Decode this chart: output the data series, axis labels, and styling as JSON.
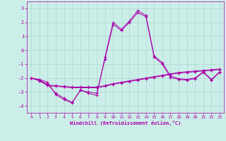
{
  "xlabel": "Windchill (Refroidissement éolien,°C)",
  "bg_color": "#cceee8",
  "grid_color": "#aad8d2",
  "line_color": "#aa00aa",
  "xlim": [
    -0.5,
    23.5
  ],
  "ylim": [
    -4.5,
    3.5
  ],
  "xticks": [
    0,
    1,
    2,
    3,
    4,
    5,
    6,
    7,
    8,
    9,
    10,
    11,
    12,
    13,
    14,
    15,
    16,
    17,
    18,
    19,
    20,
    21,
    22,
    23
  ],
  "yticks": [
    -4,
    -3,
    -2,
    -1,
    0,
    1,
    2,
    3
  ],
  "series": [
    {
      "x": [
        0,
        1,
        2,
        3,
        4,
        5,
        6,
        7,
        8,
        9,
        10,
        11,
        12,
        13,
        14,
        15,
        16,
        17,
        18,
        19,
        20,
        21,
        22,
        23
      ],
      "y": [
        -2.0,
        -2.1,
        -2.3,
        -3.2,
        -3.55,
        -3.8,
        -2.85,
        -3.1,
        -3.25,
        -0.5,
        2.0,
        1.5,
        2.1,
        2.85,
        2.5,
        -0.4,
        -0.9,
        -1.85,
        -2.05,
        -2.1,
        -2.0,
        -1.55,
        -2.1,
        -1.55
      ]
    },
    {
      "x": [
        0,
        1,
        2,
        3,
        4,
        5,
        6,
        7,
        8,
        9,
        10,
        11,
        12,
        13,
        14,
        15,
        16,
        17,
        18,
        19,
        20,
        21,
        22,
        23
      ],
      "y": [
        -2.0,
        -2.15,
        -2.45,
        -3.1,
        -3.45,
        -3.75,
        -2.9,
        -3.0,
        -3.1,
        -0.65,
        1.85,
        1.4,
        2.0,
        2.7,
        2.4,
        -0.5,
        -1.0,
        -1.95,
        -2.1,
        -2.15,
        -2.05,
        -1.6,
        -2.15,
        -1.6
      ]
    },
    {
      "x": [
        0,
        1,
        2,
        3,
        4,
        5,
        6,
        7,
        8,
        9,
        10,
        11,
        12,
        13,
        14,
        15,
        16,
        17,
        18,
        19,
        20,
        21,
        22,
        23
      ],
      "y": [
        -2.0,
        -2.2,
        -2.5,
        -2.55,
        -2.6,
        -2.65,
        -2.65,
        -2.65,
        -2.65,
        -2.55,
        -2.4,
        -2.3,
        -2.2,
        -2.1,
        -2.0,
        -1.9,
        -1.8,
        -1.7,
        -1.6,
        -1.55,
        -1.5,
        -1.45,
        -1.4,
        -1.35
      ]
    },
    {
      "x": [
        0,
        1,
        2,
        3,
        4,
        5,
        6,
        7,
        8,
        9,
        10,
        11,
        12,
        13,
        14,
        15,
        16,
        17,
        18,
        19,
        20,
        21,
        22,
        23
      ],
      "y": [
        -2.0,
        -2.2,
        -2.55,
        -2.6,
        -2.65,
        -2.7,
        -2.7,
        -2.7,
        -2.7,
        -2.6,
        -2.45,
        -2.35,
        -2.25,
        -2.15,
        -2.05,
        -1.95,
        -1.85,
        -1.75,
        -1.65,
        -1.6,
        -1.55,
        -1.5,
        -1.45,
        -1.4
      ]
    }
  ]
}
